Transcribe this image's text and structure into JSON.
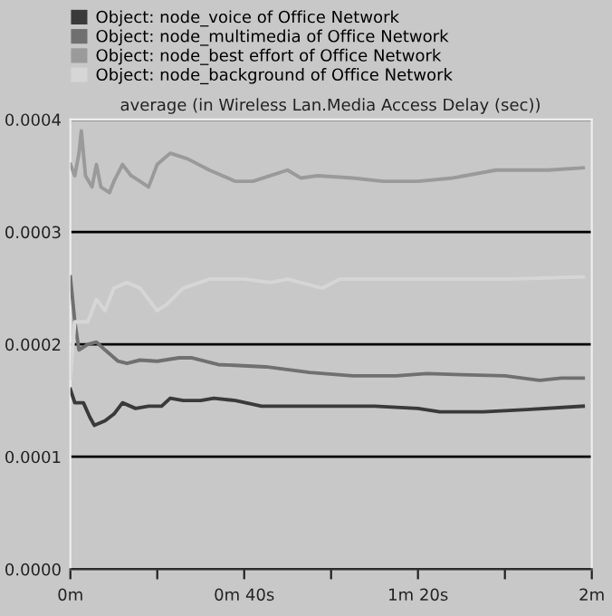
{
  "chart_data": {
    "type": "line",
    "title": "average (in Wireless Lan.Media Access Delay (sec))",
    "xlim": [
      0,
      2
    ],
    "xticks": [
      {
        "value": 0,
        "label": "0m"
      },
      {
        "value": 0.3333,
        "label": null
      },
      {
        "value": 0.6667,
        "label": "0m 40s"
      },
      {
        "value": 1,
        "label": null
      },
      {
        "value": 1.3333,
        "label": "1m 20s"
      },
      {
        "value": 1.6667,
        "label": null
      },
      {
        "value": 2,
        "label": "2m"
      }
    ],
    "ylim": [
      0,
      0.0004
    ],
    "yticks": [
      {
        "value": 0,
        "label": "0.0000"
      },
      {
        "value": 0.0001,
        "label": "0.0001"
      },
      {
        "value": 0.0002,
        "label": "0.0002"
      },
      {
        "value": 0.0003,
        "label": "0.0003"
      },
      {
        "value": 0.0004,
        "label": "0.0004"
      }
    ],
    "grid": "y",
    "legend": "top",
    "marker": "none",
    "line_style": "solid",
    "series": [
      {
        "name": "Object: node_voice of Office Network",
        "color": "#3a3a3a",
        "x": [
          0,
          0.017,
          0.05,
          0.075,
          0.092,
          0.133,
          0.167,
          0.2,
          0.25,
          0.3,
          0.35,
          0.383,
          0.433,
          0.5,
          0.55,
          0.633,
          0.733,
          0.833,
          1,
          1.167,
          1.333,
          1.417,
          1.583,
          1.75,
          1.967
        ],
        "values": [
          0.00016,
          0.000148,
          0.000148,
          0.000135,
          0.000128,
          0.000132,
          0.000138,
          0.000148,
          0.000143,
          0.000145,
          0.000145,
          0.000152,
          0.00015,
          0.00015,
          0.000152,
          0.00015,
          0.000145,
          0.000145,
          0.000145,
          0.000145,
          0.000143,
          0.00014,
          0.00014,
          0.000142,
          0.000145
        ]
      },
      {
        "name": "Object: node_multimedia of Office Network",
        "color": "#707070",
        "x": [
          0,
          0.017,
          0.033,
          0.067,
          0.1,
          0.133,
          0.183,
          0.217,
          0.267,
          0.333,
          0.417,
          0.467,
          0.567,
          0.75,
          0.917,
          1.083,
          1.25,
          1.367,
          1.5,
          1.667,
          1.8,
          1.883,
          1.967
        ],
        "values": [
          0.00026,
          0.00022,
          0.000195,
          0.0002,
          0.000202,
          0.000195,
          0.000185,
          0.000183,
          0.000186,
          0.000185,
          0.000188,
          0.000188,
          0.000182,
          0.00018,
          0.000175,
          0.000172,
          0.000172,
          0.000174,
          0.000173,
          0.000172,
          0.000168,
          0.00017,
          0.00017
        ]
      },
      {
        "name": "Object: node_best effort of Office Network",
        "color": "#9a9a9a",
        "x": [
          0,
          0.017,
          0.033,
          0.042,
          0.058,
          0.083,
          0.1,
          0.117,
          0.15,
          0.167,
          0.2,
          0.233,
          0.267,
          0.3,
          0.333,
          0.383,
          0.45,
          0.533,
          0.633,
          0.7,
          0.767,
          0.833,
          0.883,
          0.95,
          1.083,
          1.2,
          1.333,
          1.467,
          1.633,
          1.833,
          1.967
        ],
        "values": [
          0.00036,
          0.00035,
          0.00037,
          0.00039,
          0.00035,
          0.00034,
          0.00036,
          0.00034,
          0.000335,
          0.000345,
          0.00036,
          0.00035,
          0.000345,
          0.00034,
          0.00036,
          0.00037,
          0.000365,
          0.000355,
          0.000345,
          0.000345,
          0.00035,
          0.000355,
          0.000348,
          0.00035,
          0.000348,
          0.000345,
          0.000345,
          0.000348,
          0.000355,
          0.000355,
          0.000357
        ]
      },
      {
        "name": "Object: node_background of Office Network",
        "color": "#d6d6d6",
        "x": [
          0,
          0.017,
          0.067,
          0.1,
          0.133,
          0.167,
          0.217,
          0.267,
          0.333,
          0.367,
          0.433,
          0.533,
          0.667,
          0.767,
          0.833,
          0.967,
          1.033,
          1.333,
          1.667,
          1.967
        ],
        "values": [
          0.00017,
          0.00022,
          0.00022,
          0.00024,
          0.00023,
          0.00025,
          0.000255,
          0.00025,
          0.00023,
          0.000235,
          0.00025,
          0.000258,
          0.000258,
          0.000255,
          0.000258,
          0.00025,
          0.000258,
          0.000258,
          0.000258,
          0.00026
        ]
      }
    ]
  }
}
